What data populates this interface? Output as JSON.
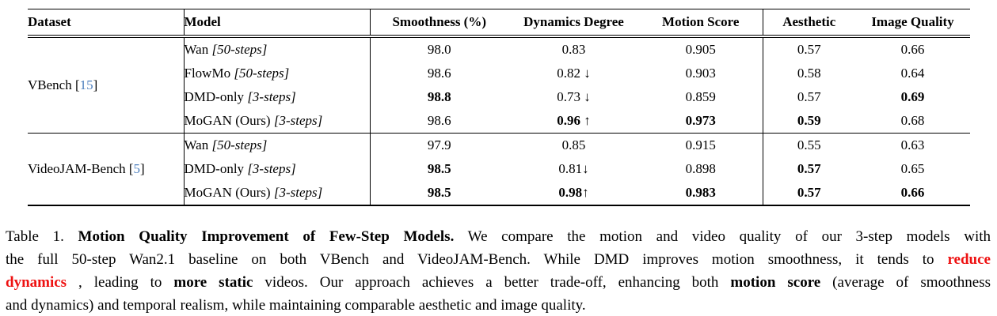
{
  "table": {
    "columns": [
      "Dataset",
      "Model",
      "Smoothness (%)",
      "Dynamics Degree",
      "Motion Score",
      "Aesthetic",
      "Image Quality"
    ],
    "sections": [
      {
        "dataset": {
          "name": "VBench",
          "cite": "15"
        },
        "rows": [
          {
            "model": "Wan",
            "steps": "[50-steps]",
            "metrics": [
              {
                "text": "98.0"
              },
              {
                "text": "0.83"
              },
              {
                "text": "0.905"
              },
              {
                "text": "0.57"
              },
              {
                "text": "0.66"
              }
            ]
          },
          {
            "model": "FlowMo",
            "steps": "[50-steps]",
            "metrics": [
              {
                "text": "98.6"
              },
              {
                "text": "0.82",
                "arrow": " ↓"
              },
              {
                "text": "0.903"
              },
              {
                "text": "0.58"
              },
              {
                "text": "0.64"
              }
            ]
          },
          {
            "model": "DMD-only",
            "steps": "[3-steps]",
            "metrics": [
              {
                "text": "98.8",
                "bold": true
              },
              {
                "text": "0.73",
                "arrow": " ↓"
              },
              {
                "text": "0.859"
              },
              {
                "text": "0.57"
              },
              {
                "text": "0.69",
                "bold": true
              }
            ]
          },
          {
            "model": "MoGAN (Ours)",
            "steps": "[3-steps]",
            "metrics": [
              {
                "text": "98.6"
              },
              {
                "text": "0.96",
                "bold": true,
                "arrow": " ↑"
              },
              {
                "text": "0.973",
                "bold": true
              },
              {
                "text": "0.59",
                "bold": true
              },
              {
                "text": "0.68"
              }
            ]
          }
        ]
      },
      {
        "dataset": {
          "name": "VideoJAM-Bench",
          "cite": "5"
        },
        "rows": [
          {
            "model": "Wan",
            "steps": "[50-steps]",
            "metrics": [
              {
                "text": "97.9"
              },
              {
                "text": "0.85"
              },
              {
                "text": "0.915"
              },
              {
                "text": "0.55"
              },
              {
                "text": "0.63"
              }
            ]
          },
          {
            "model": "DMD-only",
            "steps": "[3-steps]",
            "metrics": [
              {
                "text": "98.5",
                "bold": true
              },
              {
                "text": "0.81",
                "arrow": "↓"
              },
              {
                "text": "0.898"
              },
              {
                "text": "0.57",
                "bold": true
              },
              {
                "text": "0.65"
              }
            ]
          },
          {
            "model": "MoGAN (Ours)",
            "steps": "[3-steps]",
            "metrics": [
              {
                "text": "98.5",
                "bold": true
              },
              {
                "text": "0.98",
                "bold": true,
                "arrow": "↑"
              },
              {
                "text": "0.983",
                "bold": true
              },
              {
                "text": "0.57",
                "bold": true
              },
              {
                "text": "0.66",
                "bold": true
              }
            ]
          }
        ]
      }
    ]
  },
  "caption": {
    "lines": [
      {
        "segments": [
          {
            "text": "Table 1.  "
          },
          {
            "text": "Motion Quality Improvement of Few-Step Models.",
            "bold": true
          },
          {
            "text": "  We compare the motion and video quality of our 3-step models with"
          }
        ]
      },
      {
        "segments": [
          {
            "text": "the full 50-step Wan2.1 baseline on both VBench and VideoJAM-Bench.  While DMD improves motion smoothness, it tends to "
          },
          {
            "text": "reduce",
            "bold": true,
            "red": true
          }
        ]
      },
      {
        "segments": [
          {
            "text": "dynamics",
            "bold": true,
            "red": true
          },
          {
            "text": " , leading to "
          },
          {
            "text": "more static",
            "bold": true
          },
          {
            "text": " videos. Our approach achieves a better trade-off, enhancing both "
          },
          {
            "text": "motion score",
            "bold": true
          },
          {
            "text": " (average of smoothness"
          }
        ]
      },
      {
        "segments": [
          {
            "text": "and dynamics) and temporal realism, while maintaining comparable aesthetic and image quality."
          }
        ]
      }
    ]
  },
  "colors": {
    "text": "#000000",
    "citation_blue": "#4d7fbe",
    "highlight_red": "#ee1111"
  }
}
